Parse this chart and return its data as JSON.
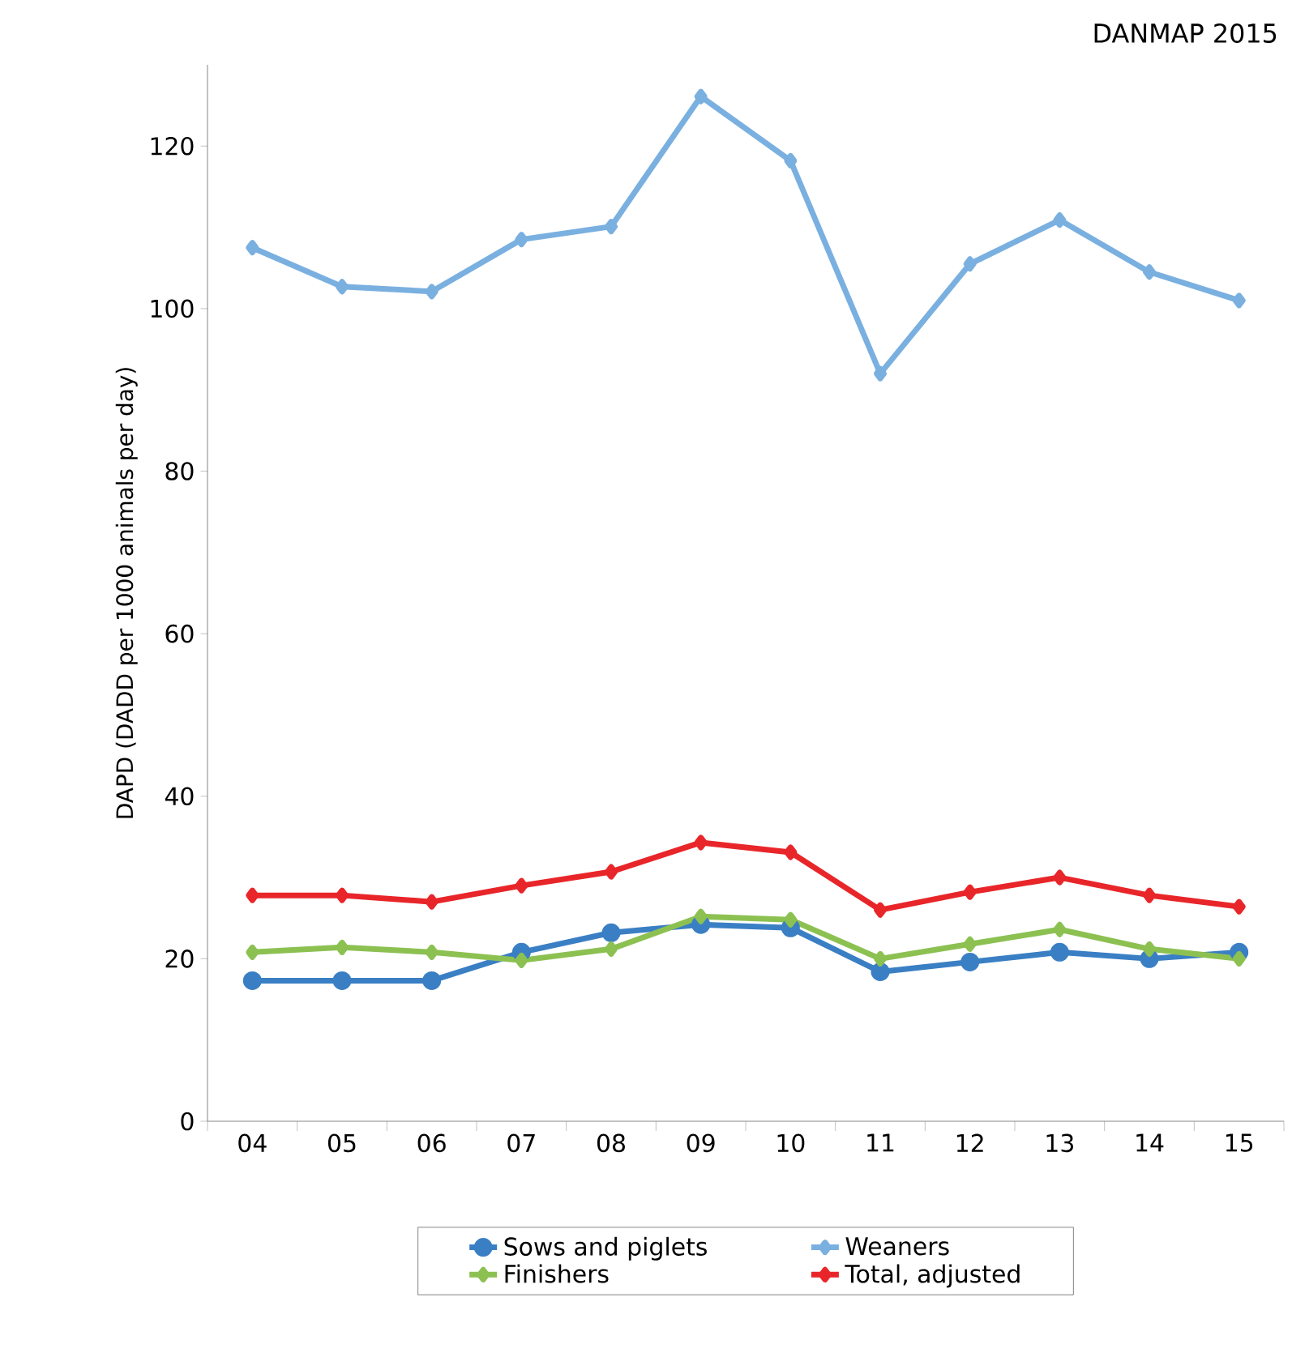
{
  "chart_data": {
    "type": "line",
    "title": "DANMAP 2015",
    "ylabel": "DAPD (DADD per 1000  animals per day)",
    "categories": [
      "04",
      "05",
      "06",
      "07",
      "08",
      "09",
      "10",
      "11",
      "12",
      "13",
      "14",
      "15"
    ],
    "ylim": [
      0,
      130
    ],
    "yticks": [
      0,
      20,
      40,
      60,
      80,
      100,
      120
    ],
    "grid": false,
    "legend": "bottom",
    "series": [
      {
        "name": "Sows and piglets",
        "color": "#3a7fc4",
        "marker": "circle",
        "values": [
          17.3,
          17.3,
          17.3,
          20.8,
          23.2,
          24.2,
          23.8,
          18.4,
          19.6,
          20.8,
          20,
          20.8
        ]
      },
      {
        "name": "Weaners",
        "color": "#7ab0e0",
        "marker": "diamond",
        "values": [
          107.5,
          102.7,
          102.1,
          108.5,
          110.1,
          126.1,
          118.2,
          92,
          105.5,
          110.9,
          104.5,
          101
        ]
      },
      {
        "name": "Finishers",
        "color": "#8cc152",
        "marker": "diamond",
        "values": [
          20.8,
          21.4,
          20.8,
          19.8,
          21.2,
          25.2,
          24.8,
          20,
          21.8,
          23.6,
          21.2,
          20
        ]
      },
      {
        "name": "Total, adjusted",
        "color": "#e8262a",
        "marker": "diamond",
        "values": [
          27.8,
          27.8,
          27,
          29,
          30.7,
          34.3,
          33.1,
          26,
          28.2,
          30,
          27.8,
          26.4
        ]
      }
    ]
  }
}
